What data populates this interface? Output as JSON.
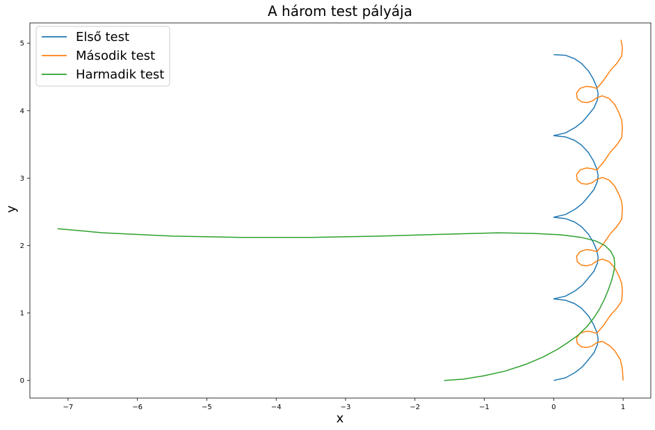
{
  "chart_data": {
    "type": "line",
    "title": "A három test pályája",
    "xlabel": "x",
    "ylabel": "y",
    "xlim": [
      -7.55,
      1.4
    ],
    "ylim": [
      -0.26,
      5.3
    ],
    "xticks": [
      -7,
      -6,
      -5,
      -4,
      -3,
      -2,
      -1,
      0,
      1
    ],
    "xtick_labels": [
      "−7",
      "−6",
      "−5",
      "−4",
      "−3",
      "−2",
      "−1",
      "0",
      "1"
    ],
    "yticks": [
      0,
      1,
      2,
      3,
      4,
      5
    ],
    "ytick_labels": [
      "0",
      "1",
      "2",
      "3",
      "4",
      "5"
    ],
    "grid": false,
    "legend_position": "upper-left",
    "series": [
      {
        "name": "Első test",
        "color": "#1f77b4",
        "x": [
          0.0,
          0.17,
          0.31,
          0.41,
          0.47,
          0.58,
          0.63,
          0.64,
          0.62,
          0.57,
          0.5,
          0.4,
          0.3,
          0.17,
          0.0,
          0.17,
          0.31,
          0.41,
          0.47,
          0.58,
          0.63,
          0.64,
          0.62,
          0.57,
          0.5,
          0.4,
          0.3,
          0.17,
          0.0,
          0.17,
          0.31,
          0.41,
          0.47,
          0.58,
          0.63,
          0.64,
          0.62,
          0.57,
          0.5,
          0.4,
          0.3,
          0.17,
          0.0,
          0.17,
          0.31,
          0.41,
          0.47,
          0.58,
          0.63,
          0.64,
          0.62,
          0.57,
          0.5,
          0.4,
          0.3,
          0.17,
          0.0
        ],
        "y": [
          0.0,
          0.04,
          0.12,
          0.2,
          0.27,
          0.41,
          0.53,
          0.62,
          0.72,
          0.84,
          0.96,
          1.07,
          1.14,
          1.19,
          1.21,
          1.25,
          1.33,
          1.41,
          1.48,
          1.62,
          1.74,
          1.83,
          1.93,
          2.05,
          2.17,
          2.28,
          2.35,
          2.4,
          2.42,
          2.46,
          2.54,
          2.62,
          2.69,
          2.83,
          2.95,
          3.04,
          3.14,
          3.26,
          3.38,
          3.49,
          3.56,
          3.61,
          3.63,
          3.67,
          3.75,
          3.83,
          3.9,
          4.04,
          4.16,
          4.25,
          4.35,
          4.47,
          4.59,
          4.7,
          4.77,
          4.82,
          4.83
        ]
      },
      {
        "name": "Második test",
        "color": "#ff7f0e",
        "x": [
          1.0,
          0.99,
          0.96,
          0.88,
          0.8,
          0.7,
          0.62,
          0.55,
          0.48,
          0.4,
          0.34,
          0.33,
          0.38,
          0.47,
          0.55,
          0.62,
          0.72,
          0.82,
          0.91,
          0.98,
          0.99,
          0.98,
          0.94,
          0.88,
          0.8,
          0.7,
          0.62,
          0.55,
          0.48,
          0.4,
          0.34,
          0.33,
          0.38,
          0.47,
          0.55,
          0.62,
          0.72,
          0.82,
          0.91,
          0.98,
          0.99,
          0.98,
          0.94,
          0.88,
          0.8,
          0.7,
          0.62,
          0.55,
          0.48,
          0.4,
          0.34,
          0.33,
          0.38,
          0.47,
          0.55,
          0.62,
          0.72,
          0.82,
          0.91,
          0.98,
          0.99,
          0.98,
          0.94,
          0.88,
          0.8,
          0.7,
          0.62,
          0.55,
          0.48,
          0.4,
          0.34,
          0.33,
          0.38,
          0.47,
          0.55,
          0.62,
          0.72,
          0.82,
          0.91,
          0.98,
          0.99,
          0.98,
          0.97
        ],
        "y": [
          0.0,
          0.17,
          0.31,
          0.44,
          0.52,
          0.58,
          0.56,
          0.51,
          0.49,
          0.5,
          0.55,
          0.63,
          0.7,
          0.73,
          0.72,
          0.7,
          0.82,
          0.97,
          1.07,
          1.18,
          1.33,
          1.44,
          1.55,
          1.67,
          1.76,
          1.8,
          1.77,
          1.72,
          1.7,
          1.71,
          1.76,
          1.84,
          1.91,
          1.94,
          1.93,
          1.91,
          2.03,
          2.18,
          2.28,
          2.39,
          2.54,
          2.65,
          2.76,
          2.88,
          2.97,
          3.01,
          2.98,
          2.93,
          2.91,
          2.92,
          2.97,
          3.05,
          3.12,
          3.15,
          3.14,
          3.12,
          3.24,
          3.39,
          3.49,
          3.6,
          3.75,
          3.86,
          3.97,
          4.09,
          4.18,
          4.22,
          4.19,
          4.14,
          4.12,
          4.13,
          4.18,
          4.26,
          4.33,
          4.36,
          4.35,
          4.33,
          4.45,
          4.6,
          4.7,
          4.81,
          4.92,
          5.0,
          5.05
        ]
      },
      {
        "name": "Harmadik test",
        "color": "#2ca02c",
        "x": [
          -1.58,
          -1.3,
          -1.0,
          -0.7,
          -0.4,
          -0.15,
          0.05,
          0.2,
          0.35,
          0.48,
          0.58,
          0.66,
          0.73,
          0.79,
          0.84,
          0.87,
          0.88,
          0.87,
          0.82,
          0.74,
          0.6,
          0.4,
          0.1,
          -0.3,
          -0.8,
          -1.5,
          -2.5,
          -3.5,
          -4.5,
          -5.5,
          -6.5,
          -7.15
        ],
        "y": [
          0.0,
          0.02,
          0.07,
          0.14,
          0.24,
          0.35,
          0.46,
          0.56,
          0.67,
          0.8,
          0.93,
          1.06,
          1.2,
          1.35,
          1.5,
          1.63,
          1.72,
          1.82,
          1.92,
          2.0,
          2.07,
          2.12,
          2.16,
          2.18,
          2.19,
          2.17,
          2.14,
          2.12,
          2.12,
          2.14,
          2.19,
          2.25
        ]
      }
    ]
  }
}
